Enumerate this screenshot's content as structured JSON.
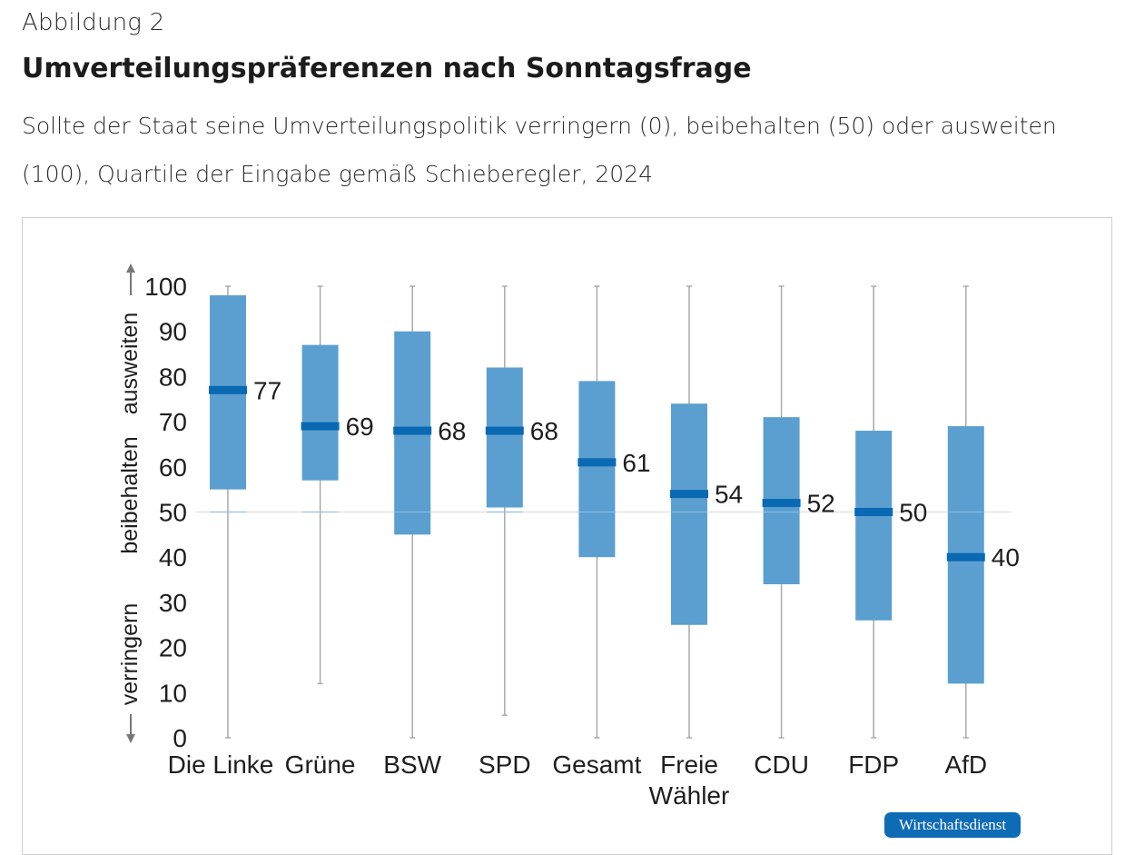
{
  "header": {
    "figure_label": "Abbildung 2",
    "title": "Umverteilungspräferenzen nach Sonntagsfrage",
    "subtitle": "Sollte der Staat seine Umverteilungspolitik verringern (0), beibehalten (50) oder ausweiten (100), Quartile der Eingabe gemäß Schieberegler, 2024"
  },
  "badge": {
    "label": "Wirtschaftsdienst",
    "color": "#0e6bb5"
  },
  "colors": {
    "box": "#5b9fd1",
    "median": "#0a69b3",
    "whisker": "#aaaaaa",
    "gridline": "#e3e3e3"
  },
  "chart_data": {
    "type": "boxplot",
    "title": "Umverteilungspräferenzen nach Sonntagsfrage",
    "ylim": [
      0,
      100
    ],
    "yticks": [
      0,
      10,
      20,
      30,
      40,
      50,
      60,
      70,
      80,
      90,
      100
    ],
    "reference_line": 50,
    "ylabel_segments": [
      {
        "text": "verringern",
        "direction": "down"
      },
      {
        "text": "beibehalten",
        "direction": "none"
      },
      {
        "text": "ausweiten",
        "direction": "up"
      }
    ],
    "categories": [
      {
        "label": [
          "Die Linke"
        ],
        "min": 0,
        "q1": 55,
        "median": 77,
        "q3": 98,
        "max": 100
      },
      {
        "label": [
          "Grüne"
        ],
        "min": 12,
        "q1": 57,
        "median": 69,
        "q3": 87,
        "max": 100
      },
      {
        "label": [
          "BSW"
        ],
        "min": 0,
        "q1": 45,
        "median": 68,
        "q3": 90,
        "max": 100
      },
      {
        "label": [
          "SPD"
        ],
        "min": 5,
        "q1": 51,
        "median": 68,
        "q3": 82,
        "max": 100
      },
      {
        "label": [
          "Gesamt"
        ],
        "min": 0,
        "q1": 40,
        "median": 61,
        "q3": 79,
        "max": 100
      },
      {
        "label": [
          "Freie",
          "Wähler"
        ],
        "min": 0,
        "q1": 25,
        "median": 54,
        "q3": 74,
        "max": 100
      },
      {
        "label": [
          "CDU"
        ],
        "min": 0,
        "q1": 34,
        "median": 52,
        "q3": 71,
        "max": 100
      },
      {
        "label": [
          "FDP"
        ],
        "min": 0,
        "q1": 26,
        "median": 50,
        "q3": 68,
        "max": 100
      },
      {
        "label": [
          "AfD"
        ],
        "min": 0,
        "q1": 12,
        "median": 40,
        "q3": 69,
        "max": 100
      }
    ]
  }
}
